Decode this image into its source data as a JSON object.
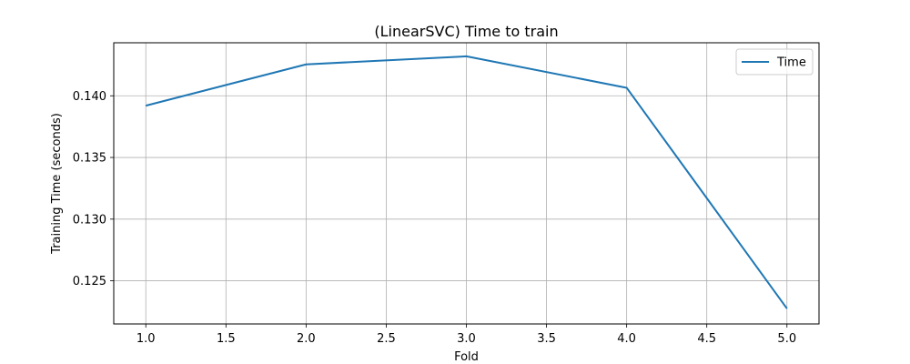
{
  "chart_data": {
    "type": "line",
    "title": "(LinearSVC) Time to train",
    "xlabel": "Fold",
    "ylabel": "Training Time (seconds)",
    "x": [
      1.0,
      2.0,
      3.0,
      4.0,
      5.0
    ],
    "series": [
      {
        "name": "Time",
        "values": [
          0.1392,
          0.14255,
          0.1432,
          0.14065,
          0.12275
        ],
        "color": "#1f77b4"
      }
    ],
    "xlim": [
      0.8,
      5.2
    ],
    "ylim": [
      0.1215,
      0.1443
    ],
    "xticks": [
      1.0,
      1.5,
      2.0,
      2.5,
      3.0,
      3.5,
      4.0,
      4.5,
      5.0
    ],
    "xtick_labels": [
      "1.0",
      "1.5",
      "2.0",
      "2.5",
      "3.0",
      "3.5",
      "4.0",
      "4.5",
      "5.0"
    ],
    "yticks": [
      0.125,
      0.13,
      0.135,
      0.14
    ],
    "ytick_labels": [
      "0.125",
      "0.130",
      "0.135",
      "0.140"
    ],
    "grid": true,
    "legend": {
      "position": "top-right",
      "entries": [
        "Time"
      ]
    }
  }
}
